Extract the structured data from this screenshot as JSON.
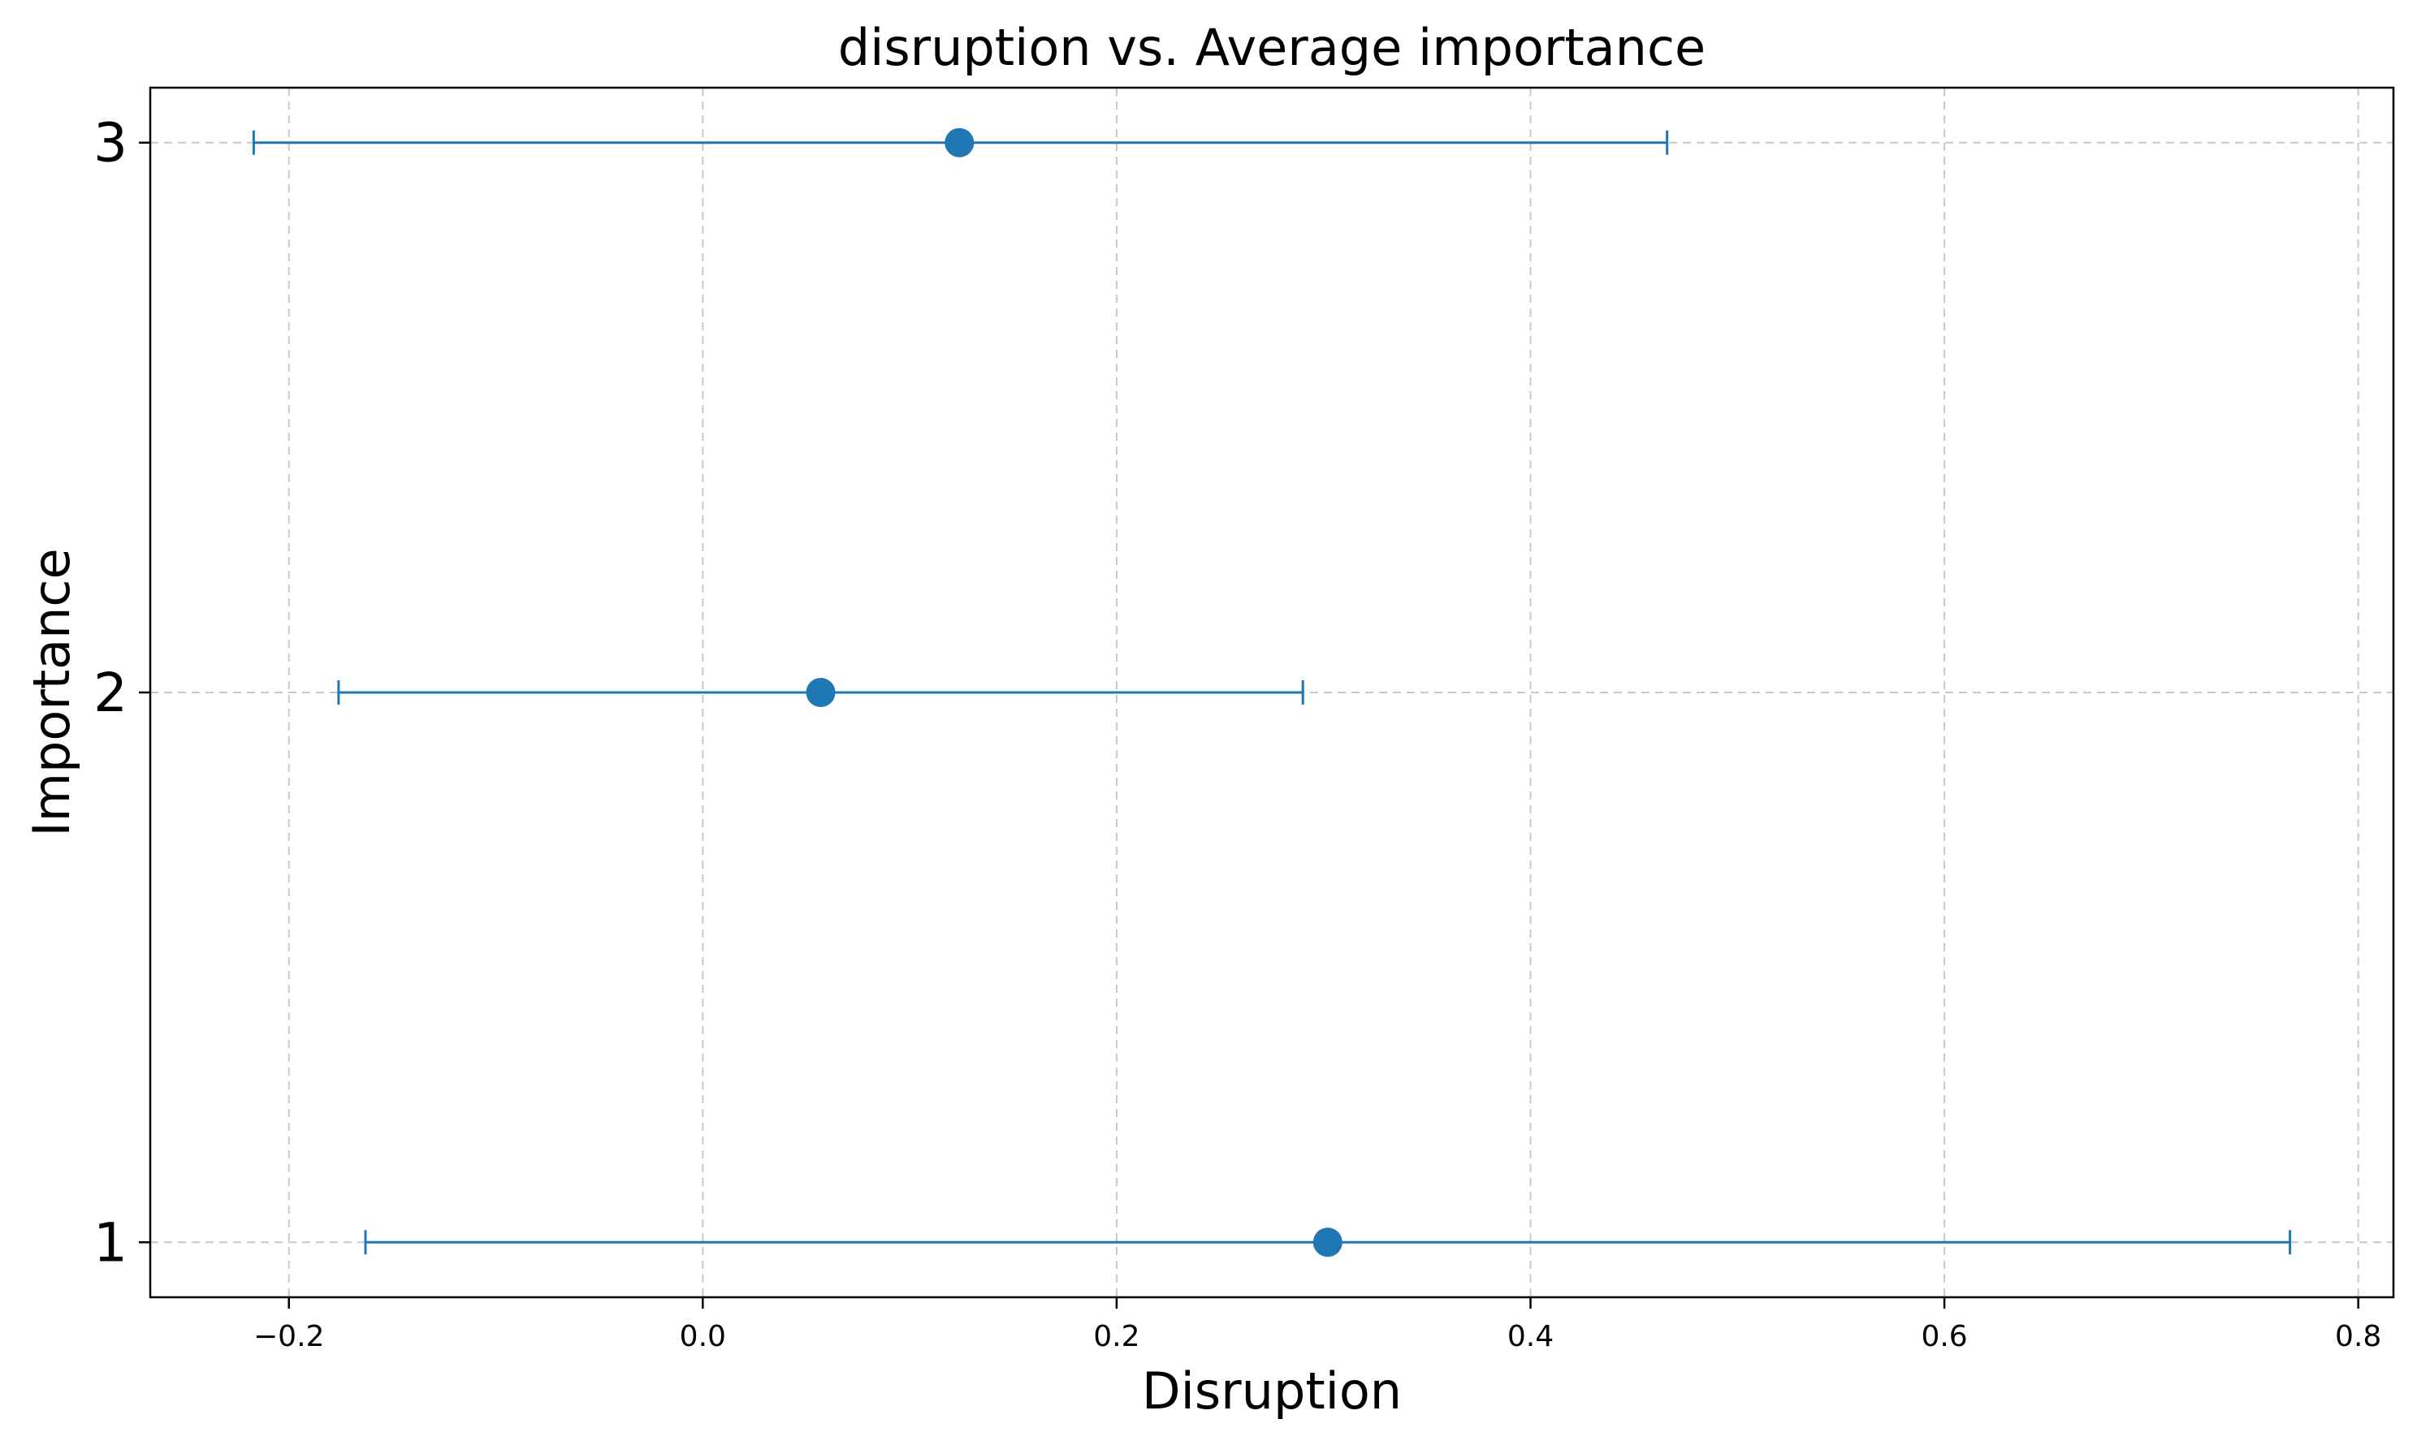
{
  "chart_data": {
    "type": "scatter",
    "title": "disruption vs. Average importance",
    "xlabel": "Disruption",
    "ylabel": "Importance",
    "xlim": [
      -0.267,
      0.817
    ],
    "ylim": [
      0.9,
      3.1
    ],
    "xticks": [
      -0.2,
      0.0,
      0.2,
      0.4,
      0.6,
      0.8
    ],
    "xtick_labels": [
      "−0.2",
      "0.0",
      "0.2",
      "0.4",
      "0.6",
      "0.8"
    ],
    "yticks": [
      1,
      2,
      3
    ],
    "ytick_labels": [
      "1",
      "2",
      "3"
    ],
    "grid": true,
    "color": "#1f77b4",
    "points": [
      {
        "importance": 1,
        "mean": 0.302,
        "low": -0.163,
        "high": 0.767
      },
      {
        "importance": 2,
        "mean": 0.057,
        "low": -0.176,
        "high": 0.29
      },
      {
        "importance": 3,
        "mean": 0.124,
        "low": -0.217,
        "high": 0.466
      }
    ]
  }
}
